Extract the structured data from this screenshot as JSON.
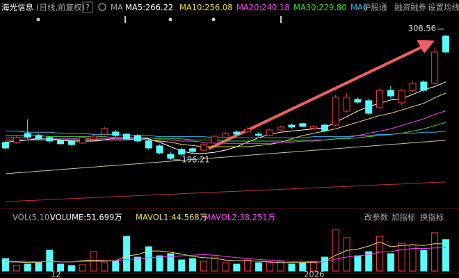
{
  "toolbar": {
    "title": "海光信息",
    "period": "(日线,前复权)",
    "help": "?",
    "indicator": "MA",
    "links": [
      "沪股通",
      "融资融券",
      "设置均线"
    ]
  },
  "volume_toolbar": {
    "links": [
      "改参数",
      "加指标",
      "换指标"
    ]
  },
  "chart_data": [
    {
      "type": "candlestick",
      "up_color": "#ff3c3c",
      "down_color": "#54fcfc",
      "ylim": [
        155.6,
        328.5
      ],
      "categories": [
        null,
        null,
        null,
        null,
        null,
        "12",
        null,
        null,
        null,
        null,
        null,
        null,
        null,
        null,
        null,
        null,
        null,
        null,
        null,
        null,
        null,
        null,
        null,
        null,
        null,
        null,
        null,
        null,
        "2026",
        null,
        null,
        null,
        null,
        null,
        null,
        null,
        null,
        null,
        null,
        null,
        null
      ],
      "candles": {
        "open": [
          211.8,
          211.8,
          219.9,
          218.1,
          216.2,
          213.7,
          213.1,
          211.2,
          214.9,
          219.3,
          221.2,
          219.3,
          218.1,
          213.1,
          208.7,
          201.2,
          205.6,
          206.2,
          204.9,
          211.2,
          216.2,
          221.2,
          221.2,
          219.3,
          218.1,
          223.0,
          227.4,
          228.7,
          224.3,
          227.4,
          227.4,
          239.9,
          250.5,
          249.3,
          243.0,
          258.6,
          247.4,
          258.6,
          266.1,
          264.9,
          307.3
        ],
        "high": [
          213.1,
          218.1,
          232.4,
          219.3,
          217.4,
          214.9,
          213.7,
          217.4,
          219.3,
          225.6,
          223.0,
          219.9,
          219.3,
          214.9,
          209.9,
          203.7,
          206.8,
          207.4,
          211.2,
          218.1,
          221.2,
          222.4,
          225.6,
          221.2,
          224.3,
          226.8,
          228.7,
          229.3,
          227.4,
          228.7,
          254.9,
          256.1,
          252.4,
          251.1,
          260.5,
          262.3,
          259.9,
          266.7,
          268.0,
          297.3,
          308.56
        ],
        "low": [
          205.6,
          210.6,
          214.9,
          213.7,
          211.8,
          209.9,
          208.7,
          210.6,
          213.7,
          218.1,
          216.8,
          213.7,
          211.8,
          205.6,
          201.2,
          196.21,
          199.9,
          202.4,
          203.7,
          210.6,
          215.5,
          218.1,
          220.5,
          216.8,
          217.4,
          222.4,
          224.3,
          225.6,
          223.7,
          221.2,
          226.2,
          238.6,
          246.8,
          236.8,
          241.8,
          251.8,
          245.5,
          257.4,
          256.8,
          263.6,
          291.8
        ],
        "close": [
          206.8,
          216.2,
          216.8,
          214.9,
          213.1,
          210.6,
          209.9,
          216.2,
          217.4,
          224.3,
          218.1,
          214.9,
          213.1,
          206.8,
          202.4,
          197.5,
          201.2,
          203.7,
          209.9,
          217.4,
          219.9,
          219.3,
          223.7,
          218.1,
          223.0,
          225.6,
          225.6,
          226.2,
          226.2,
          222.4,
          252.4,
          252.4,
          248.0,
          238.0,
          258.6,
          253.6,
          258.6,
          264.9,
          258.6,
          293.0,
          293.0
        ]
      },
      "series": [
        {
          "name": "MA5:266.22",
          "color": "#ffffff",
          "values": [
            212,
            213,
            214,
            215,
            215,
            214,
            213,
            213,
            213,
            214,
            216,
            216,
            216,
            215,
            212,
            208,
            204,
            202,
            202,
            203,
            205,
            208,
            212,
            216,
            219,
            221,
            222,
            223,
            224,
            225,
            230,
            235,
            240,
            244,
            247,
            250,
            251,
            255,
            259,
            262,
            266.22
          ]
        },
        {
          "name": "MA10:256.08",
          "color": "#f0e040",
          "values": [
            214,
            214,
            214,
            214,
            214,
            214,
            214,
            214,
            214,
            214,
            214,
            214,
            215,
            214,
            213,
            212,
            210,
            209,
            208,
            208,
            208,
            208,
            208,
            209,
            210,
            212,
            215,
            218,
            220,
            222,
            224,
            227,
            230,
            233,
            236,
            238,
            241,
            244,
            247,
            252,
            256.08
          ]
        },
        {
          "name": "MA20:240.18",
          "color": "#ff40ff",
          "values": [
            216,
            216,
            216,
            215,
            215,
            215,
            215,
            215,
            215,
            215,
            215,
            215,
            215,
            214,
            214,
            214,
            213,
            213,
            212,
            212,
            211,
            211,
            211,
            211,
            211,
            212,
            212,
            213,
            213,
            214,
            215,
            216,
            218,
            220,
            222,
            224,
            227,
            230,
            233,
            237,
            240.18
          ]
        },
        {
          "name": "MA30:229.80",
          "color": "#30e030",
          "values": [
            218,
            218,
            218,
            218,
            217,
            217,
            217,
            217,
            217,
            217,
            216,
            216,
            216,
            216,
            215,
            215,
            215,
            214,
            214,
            214,
            213,
            213,
            213,
            213,
            213,
            213,
            213,
            214,
            214,
            214,
            215,
            215,
            216,
            217,
            218,
            219,
            220,
            222,
            224,
            227,
            229.8
          ]
        },
        {
          "name": "MA6",
          "color": "#30b8f0",
          "values": [
            222,
            222,
            221,
            221,
            221,
            220,
            220,
            220,
            219,
            219,
            219,
            218,
            218,
            218,
            217,
            217,
            217,
            217,
            217,
            216,
            216,
            216,
            216,
            216,
            216,
            216,
            216,
            216,
            217,
            217,
            217,
            217,
            218,
            218,
            219,
            219,
            220,
            220,
            221,
            221,
            222
          ]
        },
        {
          "color": "#c8c890",
          "values": [
            183.7,
            184.5,
            185.2,
            186,
            186.7,
            187.5,
            188.2,
            189,
            189.7,
            190.5,
            191.2,
            192,
            192.7,
            193.5,
            194.2,
            195,
            195.7,
            196.5,
            197.2,
            198,
            198.7,
            199.5,
            200.2,
            201,
            201.7,
            202.5,
            203.2,
            204,
            204.7,
            205.5,
            206.2,
            207,
            207.7,
            208.5,
            209.2,
            210,
            210.7,
            211.5,
            212.2,
            213,
            213.7
          ]
        },
        {
          "color": "#c03030",
          "values": [
            158.7,
            159.1,
            159.6,
            160,
            160.5,
            160.9,
            161.3,
            161.8,
            162.2,
            162.7,
            163.1,
            163.5,
            164,
            164.4,
            164.9,
            165.3,
            165.7,
            166.2,
            166.6,
            167.1,
            167.5,
            167.9,
            168.4,
            168.8,
            169.3,
            169.7,
            170.1,
            170.6,
            171,
            171.5,
            171.9,
            172.3,
            172.8,
            173.2,
            173.7,
            174.1,
            174.5,
            175,
            175.4,
            175.9,
            176.3
          ]
        }
      ]
    },
    {
      "type": "bar",
      "title": "VOL(5,10)",
      "ylim": [
        0,
        80
      ],
      "series": [
        {
          "name": "VOLUME:51.699万",
          "color": "#ffffff",
          "values": [
            20.6,
            9.1,
            11.4,
            13.7,
            34.3,
            11.4,
            9.1,
            10.3,
            32,
            13.7,
            16,
            57.1,
            22.9,
            40,
            25.1,
            28.6,
            18.3,
            20.6,
            16,
            22.9,
            13.7,
            11.4,
            18.3,
            13.7,
            13.7,
            16,
            11.4,
            13.7,
            16,
            22.9,
            68.6,
            54.9,
            25.1,
            32,
            57.1,
            28.6,
            45.7,
            43.4,
            34.3,
            62.9,
            51.699
          ]
        },
        {
          "name": "MAVOL1:44.568万",
          "color": "#f0e060",
          "values": [
            15,
            15,
            14,
            14,
            17,
            15,
            15,
            17,
            18,
            17,
            17,
            25,
            27,
            33,
            33,
            31,
            28,
            24,
            22,
            21,
            18,
            17,
            17,
            16,
            15,
            14,
            14,
            14,
            14,
            16,
            26,
            34,
            36,
            41,
            48,
            40,
            42,
            43,
            42,
            45,
            44.568
          ]
        },
        {
          "name": "MAVOL2:38.251万",
          "color": "#ff40ff",
          "values": [
            16,
            16,
            16,
            15,
            16,
            15,
            15,
            16,
            16,
            16,
            17,
            19,
            20,
            22,
            23,
            24,
            25,
            26,
            27,
            26,
            24,
            22,
            21,
            19,
            18,
            17,
            16,
            16,
            15,
            15,
            20,
            23,
            25,
            27,
            31,
            32,
            35,
            37,
            37,
            38,
            38.251
          ]
        }
      ]
    }
  ]
}
